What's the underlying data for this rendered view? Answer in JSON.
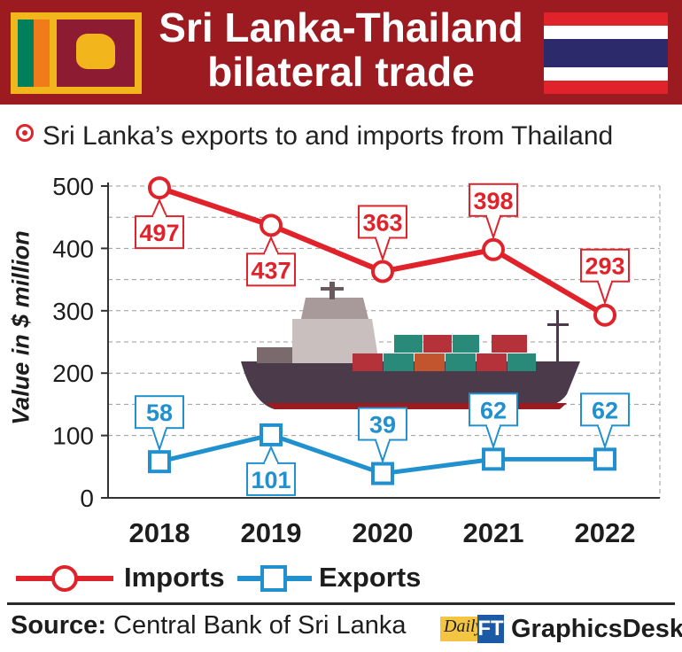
{
  "header": {
    "title_line1": "Sri Lanka-Thailand",
    "title_line2": "bilateral trade",
    "flag_left": "sri-lanka-flag",
    "flag_right": "thailand-flag"
  },
  "subtitle": "Sri Lanka’s exports to and imports from Thailand",
  "colors": {
    "imports": "#e0232b",
    "exports": "#2190cf",
    "header": "#9b1b20"
  },
  "chart_data": {
    "type": "line",
    "title": "Sri Lanka’s exports to and imports from Thailand",
    "ylabel": "Value in $ million",
    "xlabel": "",
    "categories": [
      "2018",
      "2019",
      "2020",
      "2021",
      "2022"
    ],
    "y_ticks": [
      "0",
      "100",
      "200",
      "300",
      "400",
      "500"
    ],
    "ylim": [
      0,
      500
    ],
    "grid": true,
    "series": [
      {
        "name": "Imports",
        "marker": "circle",
        "values": [
          497,
          437,
          363,
          398,
          293
        ],
        "labels": [
          "497",
          "437",
          "363",
          "398",
          "293"
        ]
      },
      {
        "name": "Exports",
        "marker": "square",
        "values": [
          58,
          101,
          39,
          62,
          62
        ],
        "labels": [
          "58",
          "101",
          "39",
          "62",
          "62"
        ]
      }
    ],
    "legend": "bottom"
  },
  "legend": {
    "imports_label": "Imports",
    "exports_label": "Exports"
  },
  "footer": {
    "source_label": "Source:",
    "source_text": " Central Bank of Sri Lanka",
    "brand_daily": "Daily",
    "brand_ft": "FT",
    "brand_desk": "GraphicsDesk"
  }
}
